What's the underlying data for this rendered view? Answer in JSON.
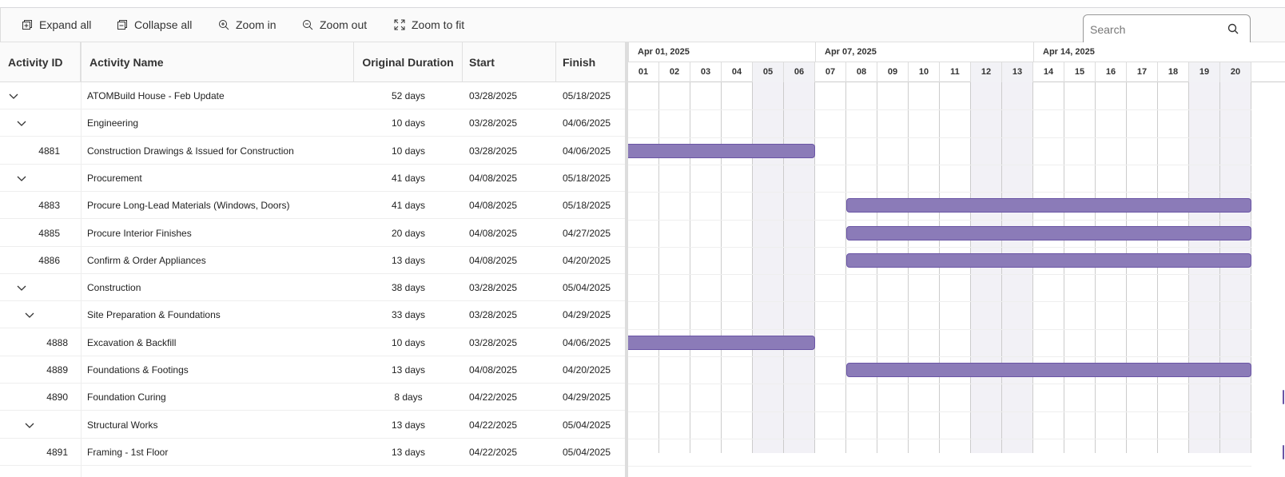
{
  "toolbar": {
    "expand_all": "Expand all",
    "collapse_all": "Collapse all",
    "zoom_in": "Zoom in",
    "zoom_out": "Zoom out",
    "zoom_to_fit": "Zoom to fit"
  },
  "search": {
    "placeholder": "Search",
    "value": ""
  },
  "columns": {
    "id": "Activity ID",
    "name": "Activity Name",
    "duration": "Original Duration",
    "start": "Start",
    "finish": "Finish"
  },
  "timeline": {
    "weeks": [
      "Apr 01, 2025",
      "Apr 07, 2025",
      "Apr 14, 2025"
    ],
    "days": [
      "01",
      "02",
      "03",
      "04",
      "05",
      "06",
      "07",
      "08",
      "09",
      "10",
      "11",
      "12",
      "13",
      "14",
      "15",
      "16",
      "17",
      "18",
      "19",
      "20"
    ],
    "weekend_days": [
      "05",
      "06",
      "12",
      "13",
      "19",
      "20"
    ]
  },
  "colors": {
    "bar": "#8b7bb8",
    "bar_border": "#6a55a5",
    "weekend": "#f2f1f6"
  },
  "rows": [
    {
      "id": "",
      "name": "ATOMBuild House - Feb Update",
      "duration": "52 days",
      "start": "03/28/2025",
      "finish": "05/18/2025",
      "level": 0,
      "expandable": true,
      "bar": false
    },
    {
      "id": "",
      "name": "Engineering",
      "duration": "10 days",
      "start": "03/28/2025",
      "finish": "04/06/2025",
      "level": 1,
      "expandable": true,
      "bar": false
    },
    {
      "id": "4881",
      "name": "Construction Drawings & Issued for Construction",
      "duration": "10 days",
      "start": "03/28/2025",
      "finish": "04/06/2025",
      "level": 2,
      "expandable": false,
      "bar": true
    },
    {
      "id": "",
      "name": "Procurement",
      "duration": "41 days",
      "start": "04/08/2025",
      "finish": "05/18/2025",
      "level": 1,
      "expandable": true,
      "bar": false
    },
    {
      "id": "4883",
      "name": "Procure Long-Lead Materials (Windows, Doors)",
      "duration": "41 days",
      "start": "04/08/2025",
      "finish": "05/18/2025",
      "level": 2,
      "expandable": false,
      "bar": true
    },
    {
      "id": "4885",
      "name": "Procure Interior Finishes",
      "duration": "20 days",
      "start": "04/08/2025",
      "finish": "04/27/2025",
      "level": 2,
      "expandable": false,
      "bar": true
    },
    {
      "id": "4886",
      "name": "Confirm & Order Appliances",
      "duration": "13 days",
      "start": "04/08/2025",
      "finish": "04/20/2025",
      "level": 2,
      "expandable": false,
      "bar": true
    },
    {
      "id": "",
      "name": "Construction",
      "duration": "38 days",
      "start": "03/28/2025",
      "finish": "05/04/2025",
      "level": 1,
      "expandable": true,
      "bar": false
    },
    {
      "id": "",
      "name": "Site Preparation & Foundations",
      "duration": "33 days",
      "start": "03/28/2025",
      "finish": "04/29/2025",
      "level": 2,
      "expandable": true,
      "bar": false
    },
    {
      "id": "4888",
      "name": "Excavation & Backfill",
      "duration": "10 days",
      "start": "03/28/2025",
      "finish": "04/06/2025",
      "level": 3,
      "expandable": false,
      "bar": true
    },
    {
      "id": "4889",
      "name": "Foundations & Footings",
      "duration": "13 days",
      "start": "04/08/2025",
      "finish": "04/20/2025",
      "level": 3,
      "expandable": false,
      "bar": true
    },
    {
      "id": "4890",
      "name": "Foundation Curing",
      "duration": "8 days",
      "start": "04/22/2025",
      "finish": "04/29/2025",
      "level": 3,
      "expandable": false,
      "bar": true
    },
    {
      "id": "",
      "name": "Structural Works",
      "duration": "13 days",
      "start": "04/22/2025",
      "finish": "05/04/2025",
      "level": 2,
      "expandable": true,
      "bar": false
    },
    {
      "id": "4891",
      "name": "Framing - 1st Floor",
      "duration": "13 days",
      "start": "04/22/2025",
      "finish": "05/04/2025",
      "level": 3,
      "expandable": false,
      "bar": true
    }
  ]
}
